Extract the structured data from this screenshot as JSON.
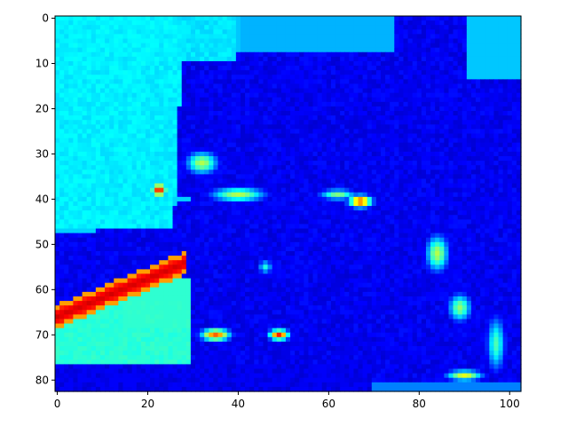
{
  "chart_data": {
    "type": "heatmap",
    "colormap": "jet",
    "title": "",
    "xlabel": "",
    "ylabel": "",
    "columns": 103,
    "rows": 83,
    "xlim": [
      -0.5,
      102.5
    ],
    "ylim": [
      82.5,
      -0.5
    ],
    "y_axis_inverted": true,
    "grid": false,
    "colorbar": false,
    "xticks": [
      0,
      20,
      40,
      60,
      80,
      100
    ],
    "xtick_labels": [
      "0",
      "20",
      "40",
      "60",
      "80",
      "100"
    ],
    "yticks": [
      0,
      10,
      20,
      30,
      40,
      50,
      60,
      70,
      80
    ],
    "ytick_labels": [
      "0",
      "10",
      "20",
      "30",
      "40",
      "50",
      "60",
      "70",
      "80"
    ],
    "value_range": [
      0,
      1
    ],
    "regions_approx": [
      {
        "area": "upper-left background",
        "value": 0.35
      },
      {
        "area": "lower-left background (rows 63-76, cols 0-30)",
        "value": 0.4
      },
      {
        "area": "face/hair interior",
        "value": 0.05
      },
      {
        "area": "bright diagonal edge rows 56-66",
        "value": 0.9
      },
      {
        "area": "left eye edge near (22,38)",
        "value": 0.8
      },
      {
        "area": "right eye edge near (67,40)",
        "value": 0.75
      },
      {
        "area": "chin/mouth edges near (35,70) and (50,70)",
        "value": 0.7
      }
    ]
  }
}
